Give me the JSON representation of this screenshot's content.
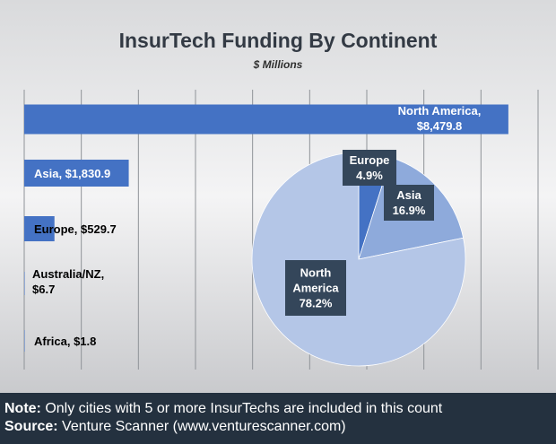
{
  "chart_data": [
    {
      "type": "bar",
      "orientation": "horizontal",
      "title": "InsurTech Funding By Continent",
      "subtitle": "$ Millions",
      "categories": [
        "North America",
        "Asia",
        "Europe",
        "Australia/NZ",
        "Africa"
      ],
      "values": [
        8479.8,
        1830.9,
        529.7,
        6.7,
        1.8
      ],
      "data_labels": [
        [
          "North America,",
          "$8,479.8"
        ],
        [
          "Asia, $1,830.9"
        ],
        [
          "Europe, $529.7"
        ],
        [
          "Australia/NZ,",
          "$6.7"
        ],
        [
          "Africa, $1.8"
        ]
      ],
      "xlim": [
        0,
        9000
      ],
      "grid": true,
      "bar_color": "#4472c4"
    },
    {
      "type": "pie",
      "categories": [
        "Europe",
        "Asia",
        "North America"
      ],
      "values": [
        4.9,
        16.9,
        78.2
      ],
      "labels": [
        [
          "Europe",
          "4.9%"
        ],
        [
          "Asia",
          "16.9%"
        ],
        [
          "North",
          "America",
          "78.2%"
        ]
      ],
      "colors": [
        "#4472c4",
        "#8eaadb",
        "#b4c6e7"
      ]
    }
  ],
  "footer": {
    "note_label": "Note:",
    "note_text": " Only cities with 5 or more InsurTechs are included in this count",
    "source_label": "Source:",
    "source_text": " Venture Scanner (www.venturescanner.com)"
  }
}
